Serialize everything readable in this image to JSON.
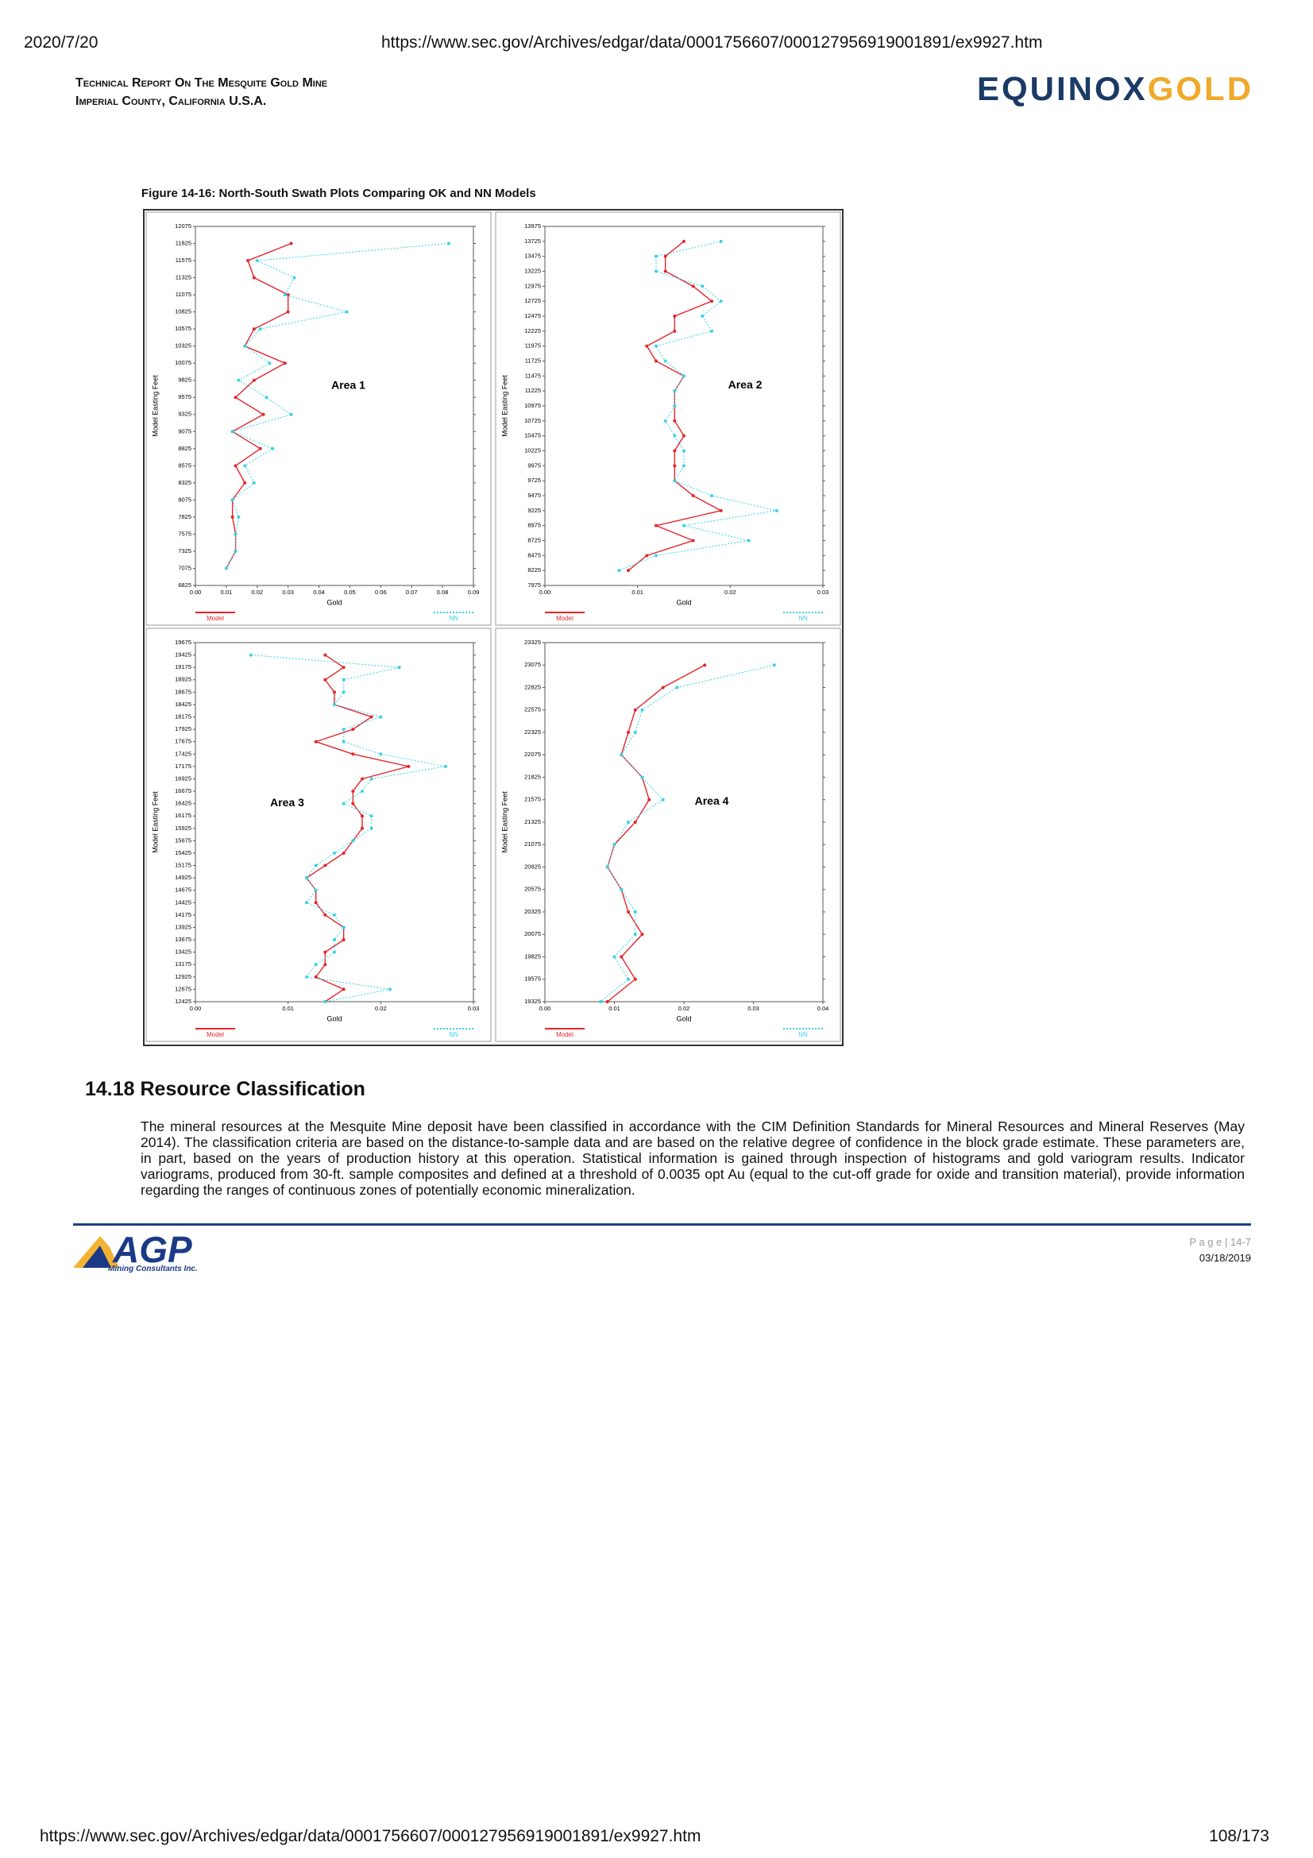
{
  "browser_header": {
    "date": "2020/7/20",
    "url": "https://www.sec.gov/Archives/edgar/data/0001756607/000127956919001891/ex9927.htm"
  },
  "header": {
    "title_line1": "Technical Report on the Mesquite Gold Mine",
    "title_line2": "Imperial County, California U.S.A.",
    "logo_part1": "EQUINOX",
    "logo_part2": "GOLD"
  },
  "figure_caption": "Figure 14-16: North-South Swath Plots Comparing OK and NN Models",
  "chart_data": [
    {
      "type": "line",
      "title": "Area 1",
      "x_label": "Gold",
      "y_label": "Model Easting Feet",
      "y": [
        11825,
        11575,
        11325,
        11075,
        10825,
        10575,
        10325,
        10075,
        9825,
        9575,
        9325,
        9075,
        8825,
        8575,
        8325,
        8075,
        7825,
        7575,
        7325,
        7075
      ],
      "series": [
        {
          "name": "Model",
          "color": "#e3262b",
          "values": [
            0.031,
            0.017,
            0.019,
            0.03,
            0.03,
            0.019,
            0.016,
            0.029,
            0.019,
            0.013,
            0.022,
            0.012,
            0.021,
            0.013,
            0.016,
            0.012,
            0.012,
            0.013,
            0.013,
            0.01
          ]
        },
        {
          "name": "NN",
          "color": "#37d3e6",
          "values": [
            0.082,
            0.02,
            0.032,
            0.029,
            0.049,
            0.021,
            0.016,
            0.024,
            0.014,
            0.023,
            0.031,
            0.012,
            0.025,
            0.016,
            0.019,
            0.012,
            0.014,
            0.013,
            0.013,
            0.01
          ]
        }
      ],
      "xlim": [
        0,
        0.09
      ],
      "xticks": [
        {
          "value": 0,
          "label": "0.00"
        },
        {
          "value": 0.01,
          "label": "0.01"
        },
        {
          "value": 0.02,
          "label": "0.02"
        },
        {
          "value": 0.03,
          "label": "0.03"
        },
        {
          "value": 0.04,
          "label": "0.04"
        },
        {
          "value": 0.05,
          "label": "0.05"
        },
        {
          "value": 0.06,
          "label": "0.06"
        },
        {
          "value": 0.07,
          "label": "0.07"
        },
        {
          "value": 0.08,
          "label": "0.08"
        },
        {
          "value": 0.09,
          "label": "0.09"
        }
      ],
      "ylim": [
        6825,
        12075
      ],
      "yticks": [
        12075,
        11825,
        11575,
        11325,
        11075,
        10825,
        10575,
        10325,
        10075,
        9825,
        9575,
        9325,
        9075,
        8825,
        8575,
        8325,
        8075,
        7825,
        7575,
        7325,
        7075,
        6825
      ]
    },
    {
      "type": "line",
      "title": "Area 2",
      "x_label": "Gold",
      "y_label": "Model Easting Feet",
      "y": [
        13725,
        13475,
        13225,
        12975,
        12725,
        12475,
        12225,
        11975,
        11725,
        11475,
        11225,
        10975,
        10725,
        10475,
        10225,
        9975,
        9725,
        9475,
        9225,
        8975,
        8725,
        8475,
        8225
      ],
      "series": [
        {
          "name": "Model",
          "color": "#e3262b",
          "values": [
            0.015,
            0.013,
            0.013,
            0.016,
            0.018,
            0.014,
            0.014,
            0.011,
            0.012,
            0.015,
            0.014,
            0.014,
            0.014,
            0.015,
            0.014,
            0.014,
            0.014,
            0.016,
            0.019,
            0.012,
            0.016,
            0.011,
            0.009
          ]
        },
        {
          "name": "NN",
          "color": "#37d3e6",
          "values": [
            0.019,
            0.012,
            0.012,
            0.017,
            0.019,
            0.017,
            0.018,
            0.012,
            0.013,
            0.015,
            0.014,
            0.014,
            0.013,
            0.014,
            0.015,
            0.015,
            0.014,
            0.018,
            0.025,
            0.015,
            0.022,
            0.012,
            0.008
          ]
        }
      ],
      "xlim": [
        0,
        0.03
      ],
      "xticks": [
        {
          "value": 0,
          "label": "0.00"
        },
        {
          "value": 0.01,
          "label": "0.01"
        },
        {
          "value": 0.02,
          "label": "0.02"
        },
        {
          "value": 0.03,
          "label": "0.03"
        }
      ],
      "ylim": [
        7975,
        13975
      ],
      "yticks": [
        13975,
        13725,
        13475,
        13225,
        12975,
        12725,
        12475,
        12225,
        11975,
        11725,
        11475,
        11225,
        10975,
        10725,
        10475,
        10225,
        9975,
        9725,
        9475,
        9225,
        8975,
        8725,
        8475,
        8225,
        7975
      ]
    },
    {
      "type": "line",
      "title": "Area 3",
      "x_label": "Gold",
      "y_label": "Model Easting Feet",
      "y": [
        19425,
        19175,
        18925,
        18675,
        18425,
        18175,
        17925,
        17675,
        17425,
        17175,
        16925,
        16675,
        16425,
        16175,
        15925,
        15675,
        15425,
        15175,
        14925,
        14675,
        14425,
        14175,
        13925,
        13675,
        13425,
        13175,
        12925,
        12675,
        12425
      ],
      "series": [
        {
          "name": "Model",
          "color": "#e3262b",
          "values": [
            0.014,
            0.016,
            0.014,
            0.015,
            0.015,
            0.019,
            0.017,
            0.013,
            0.017,
            0.023,
            0.018,
            0.017,
            0.017,
            0.018,
            0.018,
            0.017,
            0.016,
            0.014,
            0.012,
            0.013,
            0.013,
            0.014,
            0.016,
            0.016,
            0.014,
            0.014,
            0.013,
            0.016,
            0.014
          ]
        },
        {
          "name": "NN",
          "color": "#37d3e6",
          "values": [
            0.006,
            0.022,
            0.016,
            0.016,
            0.015,
            0.02,
            0.016,
            0.016,
            0.02,
            0.027,
            0.019,
            0.018,
            0.016,
            0.019,
            0.019,
            0.017,
            0.015,
            0.013,
            0.012,
            0.013,
            0.012,
            0.015,
            0.016,
            0.015,
            0.015,
            0.013,
            0.012,
            0.021,
            0.014
          ]
        }
      ],
      "xlim": [
        0,
        0.03
      ],
      "xticks": [
        {
          "value": 0,
          "label": "0.00"
        },
        {
          "value": 0.01,
          "label": "0.01"
        },
        {
          "value": 0.02,
          "label": "0.02"
        },
        {
          "value": 0.03,
          "label": "0.03"
        }
      ],
      "ylim": [
        12425,
        19675
      ],
      "yticks": [
        19675,
        19425,
        19175,
        18925,
        18675,
        18425,
        18175,
        17925,
        17675,
        17425,
        17175,
        16925,
        16675,
        16425,
        16175,
        15925,
        15675,
        15425,
        15175,
        14925,
        14675,
        14425,
        14175,
        13925,
        13675,
        13425,
        13175,
        12925,
        12675,
        12425
      ]
    },
    {
      "type": "line",
      "title": "Area 4",
      "x_label": "Gold",
      "y_label": "Model Easting Feet",
      "y": [
        23075,
        22825,
        22575,
        22325,
        22075,
        21825,
        21575,
        21325,
        21075,
        20825,
        20575,
        20325,
        20075,
        19825,
        19575,
        19325
      ],
      "series": [
        {
          "name": "Model",
          "color": "#e3262b",
          "values": [
            0.023,
            0.017,
            0.013,
            0.012,
            0.011,
            0.014,
            0.015,
            0.013,
            0.01,
            0.009,
            0.011,
            0.012,
            0.014,
            0.011,
            0.013,
            0.009
          ]
        },
        {
          "name": "NN",
          "color": "#37d3e6",
          "values": [
            0.033,
            0.019,
            0.014,
            0.013,
            0.011,
            0.014,
            0.017,
            0.012,
            0.01,
            0.009,
            0.011,
            0.013,
            0.013,
            0.01,
            0.012,
            0.008
          ]
        }
      ],
      "xlim": [
        0,
        0.04
      ],
      "xticks": [
        {
          "value": 0,
          "label": "0.00"
        },
        {
          "value": 0.01,
          "label": "0.01"
        },
        {
          "value": 0.02,
          "label": "0.02"
        },
        {
          "value": 0.03,
          "label": "0.03"
        },
        {
          "value": 0.04,
          "label": "0.04"
        }
      ],
      "ylim": [
        19325,
        23325
      ],
      "yticks": [
        23325,
        23075,
        22825,
        22575,
        22325,
        22075,
        21825,
        21575,
        21325,
        21075,
        20825,
        20575,
        20325,
        20075,
        19825,
        19575,
        19325
      ]
    }
  ],
  "section": {
    "heading": "14.18 Resource Classification",
    "paragraph": "The mineral resources at the Mesquite Mine deposit have been classified in accordance with the CIM Definition Standards for Mineral Resources and Mineral Reserves (May 2014). The classification criteria are based on the distance-to-sample data and are based on the relative degree of confidence in the block grade estimate. These parameters are, in part, based on the years of production history at this operation. Statistical information is gained through inspection of histograms and gold variogram results. Indicator variograms, produced from 30-ft. sample composites and defined at a threshold of 0.0035 opt Au (equal to the cut-off grade for oxide and transition material), provide information regarding the ranges of continuous zones of potentially economic mineralization."
  },
  "footer": {
    "logo": "AGP",
    "logo_sub": "Mining Consultants Inc.",
    "page": "P a g e | 14-7",
    "date": "03/18/2019"
  },
  "browser_footer": {
    "url": "https://www.sec.gov/Archives/edgar/data/0001756607/000127956919001891/ex9927.htm",
    "page_count": "108/173"
  }
}
